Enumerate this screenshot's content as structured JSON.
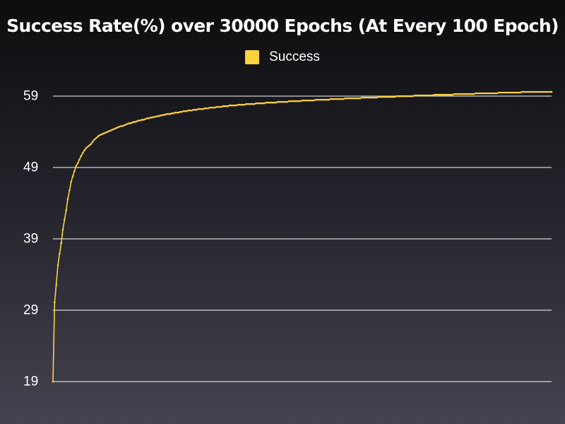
{
  "chart_data": {
    "type": "line",
    "title": "Success Rate(%) over 30000 Epochs (At Every 100 Epoch)",
    "xlabel": "",
    "ylabel": "",
    "x_start": 0,
    "x_step": 100,
    "ylim": [
      19,
      60
    ],
    "yticks": [
      59,
      49,
      39,
      29,
      19
    ],
    "grid": "horizontal",
    "legend_position": "top-center",
    "series": [
      {
        "name": "Success",
        "color": "#ffd23f",
        "values": [
          19.0,
          30.1,
          32.6,
          35.3,
          36.9,
          38.4,
          40.3,
          41.7,
          43.0,
          44.6,
          45.8,
          47.0,
          47.8,
          48.5,
          49.2,
          49.6,
          50.1,
          50.6,
          51.0,
          51.4,
          51.7,
          51.9,
          52.1,
          52.3,
          52.6,
          52.9,
          53.1,
          53.3,
          53.5,
          53.6,
          53.7,
          53.8,
          53.9,
          54.0,
          54.1,
          54.2,
          54.3,
          54.4,
          54.5,
          54.6,
          54.7,
          54.8,
          54.8,
          54.9,
          55.0,
          55.1,
          55.2,
          55.2,
          55.3,
          55.4,
          55.4,
          55.5,
          55.6,
          55.6,
          55.7,
          55.7,
          55.8,
          55.9,
          55.9,
          56.0,
          56.0,
          56.1,
          56.1,
          56.2,
          56.2,
          56.3,
          56.3,
          56.4,
          56.4,
          56.5,
          56.5,
          56.5,
          56.6,
          56.6,
          56.7,
          56.7,
          56.7,
          56.8,
          56.8,
          56.9,
          56.9,
          56.9,
          57.0,
          57.0,
          57.0,
          57.1,
          57.1,
          57.1,
          57.2,
          57.2,
          57.2,
          57.2,
          57.3,
          57.3,
          57.3,
          57.4,
          57.4,
          57.4,
          57.4,
          57.5,
          57.5,
          57.5,
          57.5,
          57.6,
          57.6,
          57.6,
          57.6,
          57.7,
          57.7,
          57.7,
          57.7,
          57.7,
          57.8,
          57.8,
          57.8,
          57.8,
          57.8,
          57.9,
          57.9,
          57.9,
          57.9,
          57.9,
          57.9,
          58.0,
          58.0,
          58.0,
          58.0,
          58.0,
          58.0,
          58.1,
          58.1,
          58.1,
          58.1,
          58.1,
          58.1,
          58.1,
          58.2,
          58.2,
          58.2,
          58.2,
          58.2,
          58.2,
          58.2,
          58.3,
          58.3,
          58.3,
          58.3,
          58.3,
          58.3,
          58.3,
          58.3,
          58.4,
          58.4,
          58.4,
          58.4,
          58.4,
          58.4,
          58.4,
          58.4,
          58.5,
          58.5,
          58.5,
          58.5,
          58.5,
          58.5,
          58.5,
          58.5,
          58.5,
          58.6,
          58.6,
          58.6,
          58.6,
          58.6,
          58.6,
          58.6,
          58.6,
          58.6,
          58.7,
          58.7,
          58.7,
          58.7,
          58.7,
          58.7,
          58.7,
          58.7,
          58.7,
          58.7,
          58.8,
          58.8,
          58.8,
          58.8,
          58.8,
          58.8,
          58.8,
          58.8,
          58.8,
          58.8,
          58.9,
          58.9,
          58.9,
          58.9,
          58.9,
          58.9,
          58.9,
          58.9,
          58.9,
          58.9,
          58.9,
          59.0,
          59.0,
          59.0,
          59.0,
          59.0,
          59.0,
          59.0,
          59.0,
          59.0,
          59.0,
          59.0,
          59.1,
          59.1,
          59.1,
          59.1,
          59.1,
          59.1,
          59.1,
          59.1,
          59.1,
          59.1,
          59.1,
          59.1,
          59.2,
          59.2,
          59.2,
          59.2,
          59.2,
          59.2,
          59.2,
          59.2,
          59.2,
          59.2,
          59.2,
          59.2,
          59.3,
          59.3,
          59.3,
          59.3,
          59.3,
          59.3,
          59.3,
          59.3,
          59.3,
          59.3,
          59.3,
          59.3,
          59.3,
          59.4,
          59.4,
          59.4,
          59.4,
          59.4,
          59.4,
          59.4,
          59.4,
          59.4,
          59.4,
          59.4,
          59.4,
          59.4,
          59.4,
          59.5,
          59.5,
          59.5,
          59.5,
          59.5,
          59.5,
          59.5,
          59.5,
          59.5,
          59.5,
          59.5,
          59.5,
          59.5,
          59.5,
          59.6,
          59.6,
          59.6,
          59.6,
          59.6,
          59.6,
          59.6,
          59.6,
          59.6,
          59.6,
          59.6,
          59.6,
          59.6,
          59.6,
          59.6,
          59.6,
          59.6,
          59.6,
          59.6
        ]
      }
    ]
  }
}
